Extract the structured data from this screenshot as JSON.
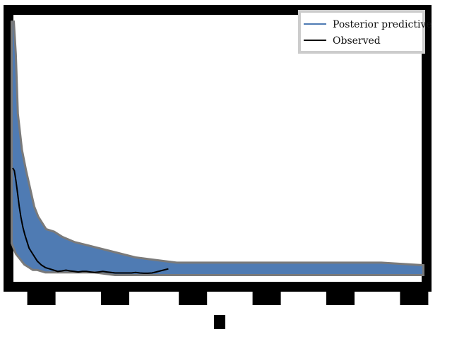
{
  "chart_data": {
    "type": "line",
    "title": "",
    "xlabel": "",
    "ylabel": "",
    "xlim": [
      0,
      100
    ],
    "ylim": [
      0,
      1.0
    ],
    "legend": {
      "placement": "top-right",
      "entries": [
        {
          "label": "Posterior predictive",
          "color": "#4f7bb3"
        },
        {
          "label": "Observed",
          "color": "#000000"
        }
      ]
    },
    "x_ticks": [
      7,
      25,
      44,
      62,
      80,
      98
    ],
    "series": [
      {
        "name": "Posterior predictive",
        "color": "#4f7bb3",
        "kind": "band",
        "x": [
          0,
          0.5,
          1,
          2,
          3,
          4,
          5,
          6,
          8,
          10,
          12,
          15,
          20,
          25,
          30,
          35,
          40,
          50,
          60,
          70,
          80,
          90,
          100
        ],
        "upper": [
          0.98,
          0.85,
          0.62,
          0.48,
          0.4,
          0.33,
          0.26,
          0.22,
          0.17,
          0.16,
          0.14,
          0.12,
          0.1,
          0.08,
          0.06,
          0.05,
          0.04,
          0.04,
          0.04,
          0.04,
          0.04,
          0.04,
          0.03
        ],
        "lower": [
          0.12,
          0.1,
          0.08,
          0.06,
          0.04,
          0.03,
          0.02,
          0.02,
          0.01,
          0.01,
          0.01,
          0.01,
          0.01,
          0.0,
          0.0,
          0.0,
          0.0,
          0.0,
          0.0,
          0.0,
          0.0,
          0.0,
          0.0
        ]
      },
      {
        "name": "Observed",
        "color": "#000000",
        "kind": "line",
        "x": [
          0,
          0.4,
          0.8,
          1.2,
          1.6,
          2.0,
          2.5,
          3,
          3.5,
          4,
          5,
          6,
          7,
          8,
          9,
          10,
          11,
          12,
          13,
          14,
          15,
          16,
          17,
          18,
          19,
          20,
          21,
          22,
          23,
          24,
          25,
          26,
          27,
          28,
          29,
          30,
          31,
          32,
          33,
          34,
          35,
          36,
          37,
          38
        ],
        "y": [
          0.41,
          0.4,
          0.36,
          0.31,
          0.26,
          0.22,
          0.18,
          0.15,
          0.125,
          0.1,
          0.075,
          0.05,
          0.035,
          0.025,
          0.02,
          0.015,
          0.01,
          0.012,
          0.015,
          0.012,
          0.01,
          0.008,
          0.01,
          0.01,
          0.008,
          0.006,
          0.008,
          0.01,
          0.008,
          0.006,
          0.004,
          0.004,
          0.004,
          0.004,
          0.004,
          0.006,
          0.004,
          0.003,
          0.003,
          0.004,
          0.008,
          0.012,
          0.016,
          0.02
        ]
      }
    ]
  }
}
